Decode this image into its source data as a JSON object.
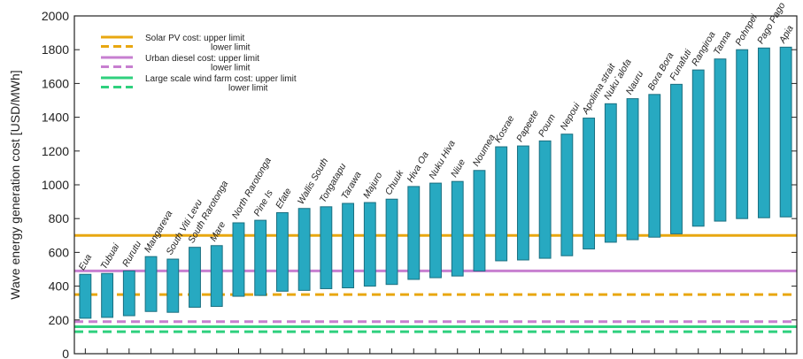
{
  "chart_data": {
    "type": "bar",
    "ylabel": "Wave energy generation cost [USD/MWh]",
    "ylim": [
      0,
      2000
    ],
    "yticks": [
      0,
      200,
      400,
      600,
      800,
      1000,
      1200,
      1400,
      1600,
      1800,
      2000
    ],
    "categories": [
      "Eua",
      "Tubuai",
      "Rurutu",
      "Mangareva",
      "South Viti Levu",
      "South Rarotonga",
      "Mare",
      "North Rarotonga",
      "Pine Is",
      "Efate",
      "Wallis South",
      "Tongatapu",
      "Tarawa",
      "Majuro",
      "Chuuk",
      "Hiva Oa",
      "Nuku Hiva",
      "Niue",
      "Noumea",
      "Kosrae",
      "Papeete",
      "Poum",
      "Nepoui",
      "Apolima strait",
      "Nuku`alofa",
      "Nauru",
      "Bora Bora",
      "Funafuti",
      "Rangiroa",
      "Tanna",
      "Pohnpei",
      "Pago Pago",
      "Apia"
    ],
    "series": [
      {
        "low": [
          210,
          215,
          225,
          250,
          245,
          275,
          280,
          340,
          345,
          370,
          375,
          385,
          390,
          400,
          410,
          440,
          450,
          460,
          490,
          550,
          555,
          565,
          580,
          620,
          660,
          675,
          690,
          710,
          755,
          785,
          800,
          805,
          810
        ],
        "high": [
          470,
          475,
          490,
          575,
          560,
          630,
          640,
          775,
          790,
          835,
          860,
          870,
          890,
          895,
          915,
          990,
          1010,
          1020,
          1085,
          1225,
          1230,
          1260,
          1300,
          1395,
          1480,
          1510,
          1535,
          1595,
          1680,
          1745,
          1800,
          1810,
          1815
        ]
      }
    ],
    "reference_lines": [
      {
        "label": "Solar PV cost: upper limit",
        "value": 700,
        "color": "#e8a710",
        "dash": false
      },
      {
        "label": "lower limit",
        "value": 350,
        "color": "#e8a710",
        "dash": true
      },
      {
        "label": "Urban diesel cost: upper limit",
        "value": 490,
        "color": "#c77fd0",
        "dash": false
      },
      {
        "label": "lower limit",
        "value": 190,
        "color": "#c77fd0",
        "dash": true
      },
      {
        "label": "Large scale wind farm cost: upper limit",
        "value": 160,
        "color": "#2fd07e",
        "dash": false
      },
      {
        "label": "lower limit",
        "value": 130,
        "color": "#2fd07e",
        "dash": true
      }
    ],
    "bar_color": "#27a9c1",
    "grid": false,
    "legend_position": "top-left"
  }
}
